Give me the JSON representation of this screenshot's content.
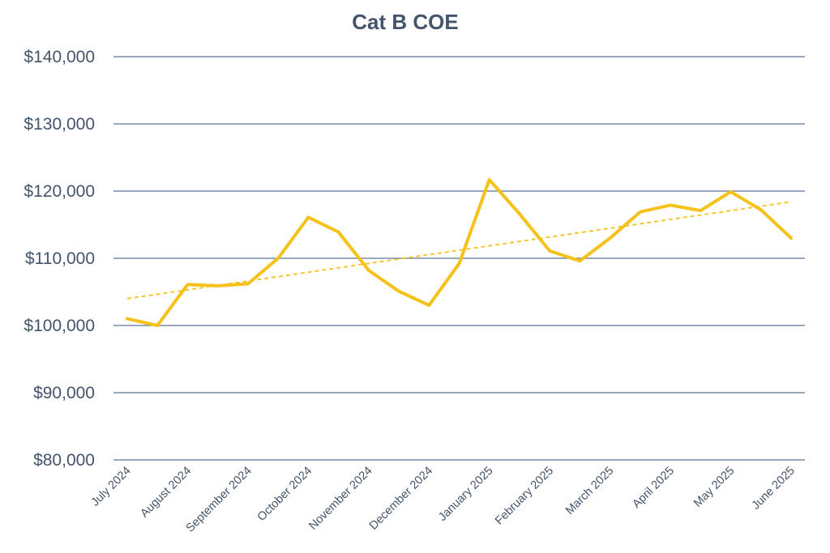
{
  "chart_data": {
    "type": "line",
    "title": "Cat B COE",
    "xlabel": "",
    "ylabel": "",
    "categories": [
      "July 2024",
      "August 2024",
      "September 2024",
      "October 2024",
      "November 2024",
      "December 2024",
      "January 2025",
      "February 2025",
      "March 2025",
      "April 2025",
      "May 2025",
      "June 2025"
    ],
    "x": [
      "Jul 2024 (1st)",
      "Jul 2024 (2nd)",
      "Aug 2024 (1st)",
      "Aug 2024 (2nd)",
      "Sep 2024 (1st)",
      "Sep 2024 (2nd)",
      "Oct 2024 (1st)",
      "Oct 2024 (2nd)",
      "Nov 2024 (1st)",
      "Nov 2024 (2nd)",
      "Dec 2024 (1st)",
      "Dec 2024 (2nd)",
      "Jan 2025 (1st)",
      "Jan 2025 (2nd)",
      "Feb 2025 (1st)",
      "Feb 2025 (2nd)",
      "Mar 2025 (1st)",
      "Mar 2025 (2nd)",
      "Apr 2025 (1st)",
      "Apr 2025 (2nd)",
      "May 2025 (1st)",
      "May 2025 (2nd)",
      "Jun 2025 (1st)"
    ],
    "series": [
      {
        "values": [
          101000,
          100000,
          106100,
          105900,
          106200,
          110000,
          116100,
          113900,
          108200,
          105100,
          103000,
          109200,
          121700,
          116600,
          111100,
          109600,
          113000,
          116900,
          117900,
          117100,
          119900,
          117200,
          113000
        ],
        "color": "#f5c11b"
      }
    ],
    "trendline": {
      "type": "linear",
      "style": "dashed",
      "color": "#f5c11b",
      "start": 104000,
      "end": 118400
    },
    "y_tick_labels": [
      "$80,000",
      "$90,000",
      "$100,000",
      "$110,000",
      "$120,000",
      "$130,000",
      "$140,000"
    ],
    "y_ticks": [
      80000,
      90000,
      100000,
      110000,
      120000,
      130000,
      140000
    ],
    "ylim": [
      80000,
      140000
    ],
    "grid": "horizontal",
    "legend": "none",
    "gridline_color": "#5b7497",
    "text_color": "#44546a"
  }
}
